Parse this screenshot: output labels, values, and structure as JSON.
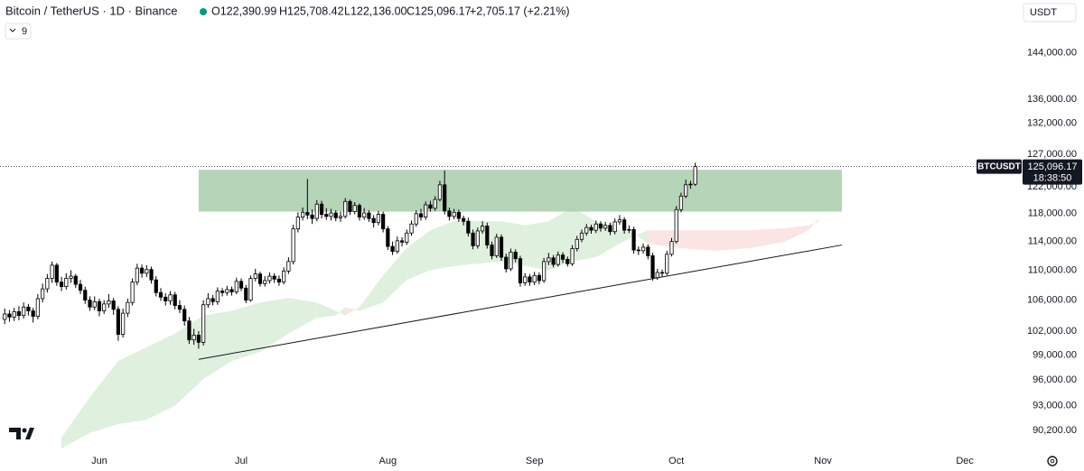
{
  "header": {
    "title": "Bitcoin / TetherUS · 1D · Binance",
    "open": "O122,390.99",
    "high": "H125,708.42",
    "low": "L122,136.00",
    "close": "C125,096.17",
    "change": "+2,705.17 (+2.21%)",
    "indicators": "9",
    "currency": "USDT"
  },
  "chart_data": {
    "type": "candlestick",
    "log_scale": true,
    "grid": false,
    "up_color": "#ffffff",
    "down_color": "#000000",
    "wick_color": "#000000",
    "xlim": [
      -1,
      211
    ],
    "ylim": [
      87900,
      153800
    ],
    "xticks": [
      {
        "value": 20,
        "label": "Jun"
      },
      {
        "value": 50,
        "label": "Jul"
      },
      {
        "value": 81,
        "label": "Aug"
      },
      {
        "value": 112,
        "label": "Sep"
      },
      {
        "value": 142,
        "label": "Oct"
      },
      {
        "value": 173,
        "label": "Nov"
      },
      {
        "value": 203,
        "label": "Dec"
      }
    ],
    "yticks": [
      {
        "value": 90200,
        "label": "90,200.00"
      },
      {
        "value": 93000,
        "label": "93,000.00"
      },
      {
        "value": 96000,
        "label": "96,000.00"
      },
      {
        "value": 99000,
        "label": "99,000.00"
      },
      {
        "value": 102000,
        "label": "102,000.00"
      },
      {
        "value": 106000,
        "label": "106,000.00"
      },
      {
        "value": 110000,
        "label": "110,000.00"
      },
      {
        "value": 114000,
        "label": "114,000.00"
      },
      {
        "value": 118000,
        "label": "118,000.00"
      },
      {
        "value": 122000,
        "label": "122,000.00"
      },
      {
        "value": 127000,
        "label": "127,000.00"
      },
      {
        "value": 132000,
        "label": "132,000.00"
      },
      {
        "value": 136000,
        "label": "136,000.00"
      },
      {
        "value": 144000,
        "label": "144,000.00"
      }
    ],
    "candles": [
      [
        103500,
        104900,
        102900,
        104200
      ],
      [
        104200,
        104700,
        103200,
        103800
      ],
      [
        103800,
        105000,
        103300,
        104500
      ],
      [
        104500,
        105200,
        103400,
        104000
      ],
      [
        104000,
        105700,
        103600,
        105100
      ],
      [
        105100,
        105500,
        104000,
        104600
      ],
      [
        104600,
        105000,
        103100,
        103900
      ],
      [
        103900,
        106800,
        103500,
        106200
      ],
      [
        106200,
        108200,
        105700,
        107500
      ],
      [
        107500,
        109500,
        107000,
        108900
      ],
      [
        108900,
        111200,
        108300,
        110700
      ],
      [
        110700,
        111000,
        107900,
        108400
      ],
      [
        108400,
        109100,
        107200,
        107800
      ],
      [
        107800,
        109600,
        107400,
        108900
      ],
      [
        108900,
        110000,
        108300,
        109200
      ],
      [
        109200,
        109500,
        107600,
        108100
      ],
      [
        108100,
        108700,
        106800,
        107300
      ],
      [
        107300,
        107800,
        105500,
        106000
      ],
      [
        106000,
        106500,
        104600,
        105100
      ],
      [
        105100,
        106500,
        104700,
        105800
      ],
      [
        105800,
        106200,
        103900,
        104600
      ],
      [
        104600,
        106000,
        104200,
        105500
      ],
      [
        105500,
        106800,
        105000,
        105900
      ],
      [
        105900,
        106300,
        104100,
        104800
      ],
      [
        104800,
        105200,
        100800,
        101600
      ],
      [
        101600,
        104900,
        101200,
        104300
      ],
      [
        104300,
        106200,
        103800,
        105700
      ],
      [
        105700,
        108900,
        105300,
        108400
      ],
      [
        108400,
        110900,
        108000,
        110300
      ],
      [
        110300,
        110800,
        109000,
        109600
      ],
      [
        109600,
        110700,
        109100,
        110100
      ],
      [
        110100,
        110500,
        108200,
        108700
      ],
      [
        108700,
        109200,
        106500,
        107000
      ],
      [
        107000,
        107600,
        105900,
        106400
      ],
      [
        106400,
        106900,
        105300,
        105900
      ],
      [
        105900,
        107200,
        105400,
        106700
      ],
      [
        106700,
        107100,
        104800,
        105300
      ],
      [
        105300,
        106000,
        104300,
        104800
      ],
      [
        104800,
        105300,
        102700,
        103300
      ],
      [
        103300,
        103800,
        100400,
        100900
      ],
      [
        100900,
        102300,
        100300,
        101500
      ],
      [
        101500,
        102000,
        99800,
        100600
      ],
      [
        100600,
        106000,
        100200,
        105400
      ],
      [
        105400,
        106900,
        105000,
        106200
      ],
      [
        106200,
        106700,
        105300,
        105800
      ],
      [
        105800,
        107700,
        105400,
        107200
      ],
      [
        107200,
        107600,
        106500,
        107000
      ],
      [
        107000,
        107900,
        106600,
        107400
      ],
      [
        107400,
        107800,
        106600,
        107100
      ],
      [
        107100,
        109000,
        106800,
        108500
      ],
      [
        108500,
        108900,
        107200,
        107600
      ],
      [
        107600,
        108000,
        105600,
        106000
      ],
      [
        106000,
        109300,
        105800,
        108900
      ],
      [
        108900,
        110200,
        108500,
        109500
      ],
      [
        109500,
        109800,
        107800,
        108200
      ],
      [
        108200,
        109200,
        107800,
        108600
      ],
      [
        108600,
        109700,
        108200,
        109200
      ],
      [
        109200,
        109600,
        108300,
        108800
      ],
      [
        108800,
        109300,
        107900,
        108400
      ],
      [
        108400,
        110400,
        108100,
        109900
      ],
      [
        109900,
        111800,
        109500,
        111200
      ],
      [
        111200,
        116400,
        110800,
        115800
      ],
      [
        115800,
        118200,
        115300,
        117500
      ],
      [
        117500,
        118900,
        117000,
        118200
      ],
      [
        118200,
        123200,
        117200,
        117800
      ],
      [
        117800,
        118600,
        116500,
        117300
      ],
      [
        117300,
        120000,
        116900,
        119400
      ],
      [
        119400,
        119900,
        117300,
        117900
      ],
      [
        117900,
        118800,
        117100,
        117600
      ],
      [
        117600,
        118700,
        117000,
        118100
      ],
      [
        118100,
        118500,
        116900,
        117400
      ],
      [
        117400,
        118300,
        116800,
        117600
      ],
      [
        117600,
        120300,
        117300,
        119800
      ],
      [
        119800,
        120100,
        117800,
        118300
      ],
      [
        118300,
        119700,
        117900,
        119200
      ],
      [
        119200,
        119500,
        117000,
        117500
      ],
      [
        117500,
        118800,
        117100,
        118100
      ],
      [
        118100,
        118500,
        116800,
        117300
      ],
      [
        117300,
        117800,
        116000,
        116700
      ],
      [
        116700,
        118400,
        116300,
        117900
      ],
      [
        117900,
        118300,
        115300,
        115800
      ],
      [
        115800,
        116200,
        112800,
        113300
      ],
      [
        113300,
        114000,
        112100,
        112600
      ],
      [
        112600,
        114700,
        112300,
        114100
      ],
      [
        114100,
        114600,
        113300,
        113900
      ],
      [
        113900,
        115700,
        113500,
        115200
      ],
      [
        115200,
        117000,
        114800,
        116500
      ],
      [
        116500,
        118500,
        116100,
        118000
      ],
      [
        118000,
        118700,
        117000,
        117500
      ],
      [
        117500,
        119800,
        117100,
        119300
      ],
      [
        119300,
        119900,
        118300,
        118800
      ],
      [
        118800,
        120600,
        118400,
        120100
      ],
      [
        120100,
        122900,
        119800,
        122300
      ],
      [
        122300,
        124500,
        117900,
        118400
      ],
      [
        118400,
        118900,
        117000,
        117600
      ],
      [
        117600,
        118700,
        117200,
        118200
      ],
      [
        118200,
        118600,
        116800,
        117300
      ],
      [
        117300,
        117700,
        116300,
        116900
      ],
      [
        116900,
        117400,
        114700,
        115200
      ],
      [
        115200,
        115700,
        112900,
        113400
      ],
      [
        113400,
        116000,
        113000,
        115500
      ],
      [
        115500,
        116900,
        115100,
        116200
      ],
      [
        116200,
        116700,
        113000,
        113500
      ],
      [
        113500,
        114000,
        111500,
        112000
      ],
      [
        112000,
        115100,
        111700,
        114600
      ],
      [
        114600,
        115000,
        111300,
        111800
      ],
      [
        111800,
        112300,
        109700,
        110200
      ],
      [
        110200,
        113000,
        109900,
        112500
      ],
      [
        112500,
        112900,
        111100,
        111600
      ],
      [
        111600,
        112000,
        107800,
        108300
      ],
      [
        108300,
        109600,
        107900,
        109100
      ],
      [
        109100,
        109500,
        107900,
        108400
      ],
      [
        108400,
        109800,
        108000,
        109300
      ],
      [
        109300,
        109700,
        108100,
        108600
      ],
      [
        108600,
        111700,
        108300,
        111200
      ],
      [
        111200,
        112400,
        110700,
        111700
      ],
      [
        111700,
        112100,
        110400,
        110800
      ],
      [
        110800,
        112600,
        110500,
        112100
      ],
      [
        112100,
        112500,
        111000,
        111500
      ],
      [
        111500,
        111900,
        110500,
        110900
      ],
      [
        110900,
        113500,
        110600,
        113000
      ],
      [
        113000,
        114800,
        112600,
        114300
      ],
      [
        114300,
        115700,
        113900,
        115200
      ],
      [
        115200,
        116500,
        114800,
        116000
      ],
      [
        116000,
        116400,
        115100,
        115600
      ],
      [
        115600,
        117000,
        115200,
        116500
      ],
      [
        116500,
        116900,
        115400,
        115900
      ],
      [
        115900,
        116800,
        115500,
        116300
      ],
      [
        116300,
        116700,
        114900,
        115400
      ],
      [
        115400,
        117300,
        115000,
        116800
      ],
      [
        116800,
        117800,
        116400,
        117100
      ],
      [
        117100,
        117500,
        115100,
        115600
      ],
      [
        115600,
        116300,
        115200,
        115700
      ],
      [
        115700,
        116100,
        112300,
        112800
      ],
      [
        112800,
        113300,
        112100,
        112700
      ],
      [
        112700,
        113700,
        112300,
        113200
      ],
      [
        113200,
        113600,
        111500,
        112000
      ],
      [
        112000,
        112400,
        108600,
        109000
      ],
      [
        109000,
        110200,
        108700,
        109700
      ],
      [
        109700,
        110100,
        109100,
        109600
      ],
      [
        109600,
        112700,
        109300,
        112200
      ],
      [
        112200,
        114500,
        111900,
        114000
      ],
      [
        114000,
        119100,
        113700,
        118600
      ],
      [
        118600,
        121100,
        118200,
        120600
      ],
      [
        120600,
        123100,
        120300,
        122300
      ],
      [
        122300,
        122900,
        121700,
        122400
      ],
      [
        122390.99,
        125708.42,
        122136.0,
        125096.17
      ]
    ],
    "cloud": {
      "up_color": "#dff0df",
      "down_color": "#fbe4e4",
      "x": [
        12,
        18,
        24,
        30,
        36,
        42,
        48,
        54,
        60,
        66,
        70,
        72,
        75,
        80,
        85,
        90,
        95,
        100,
        105,
        110,
        115,
        120,
        125,
        130,
        133,
        136,
        142,
        150,
        158,
        165,
        170,
        172
      ],
      "span_a": [
        89400,
        94000,
        98300,
        100000,
        101700,
        104000,
        104600,
        105700,
        106300,
        105700,
        104600,
        104000,
        105100,
        109300,
        113100,
        115600,
        116900,
        116900,
        116900,
        116300,
        116900,
        118900,
        116900,
        115600,
        115200,
        113700,
        113100,
        112700,
        113100,
        114000,
        115600,
        117300
      ],
      "span_b": [
        88200,
        89900,
        90900,
        91400,
        93000,
        96100,
        98300,
        99400,
        101700,
        103700,
        104000,
        105100,
        104600,
        105700,
        108700,
        110000,
        110600,
        110900,
        111200,
        110600,
        110000,
        111200,
        111800,
        113700,
        114700,
        115600,
        115600,
        115600,
        115600,
        115900,
        116300,
        116800
      ]
    },
    "zone": {
      "x": [
        41,
        177
      ],
      "y": [
        118300,
        124600
      ],
      "color": "#a9cdab"
    },
    "trendline": {
      "x": [
        41,
        177
      ],
      "y": [
        98500,
        113500
      ],
      "color": "#131722"
    },
    "symbol": "BTCUSDT",
    "last_price": {
      "value": 125096.17,
      "label": "125,096.17"
    },
    "countdown": "18:38:50"
  }
}
